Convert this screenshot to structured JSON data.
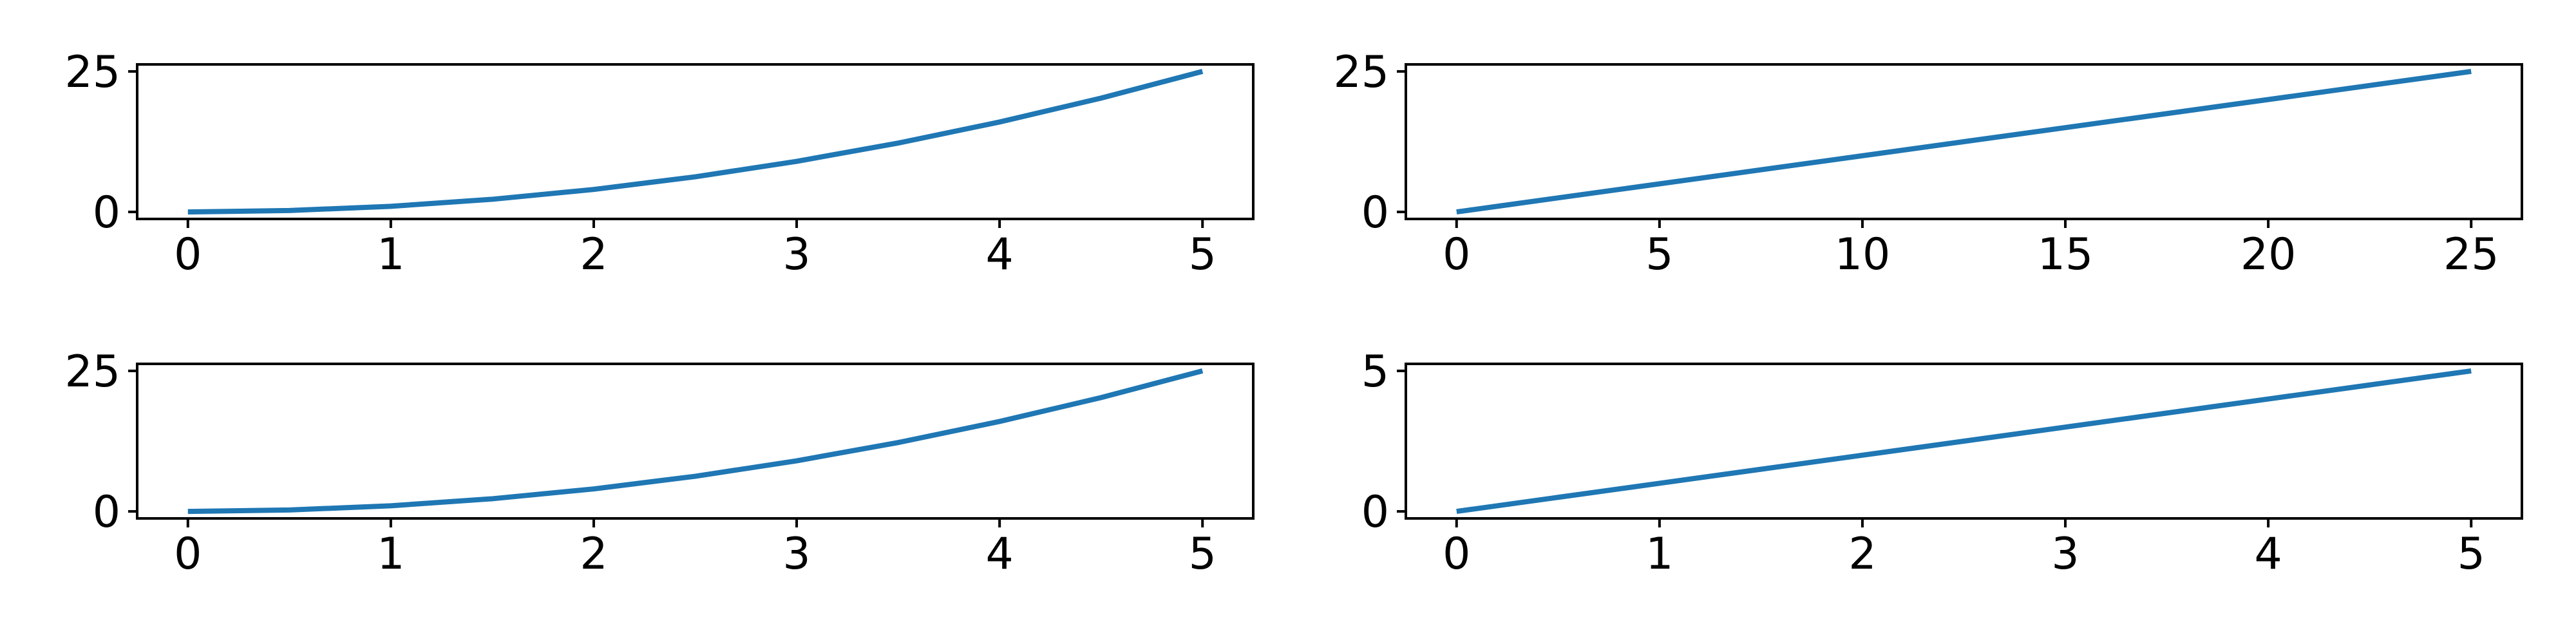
{
  "colors": {
    "series": "#1f77b4",
    "axes": "#000000",
    "background": "#ffffff"
  },
  "chart_data": [
    {
      "type": "line",
      "title": "",
      "xlabel": "",
      "ylabel": "",
      "grid": false,
      "xlim": [
        -0.25,
        5.25
      ],
      "ylim": [
        -1.25,
        26.25
      ],
      "xticks": [
        0,
        1,
        2,
        3,
        4,
        5
      ],
      "yticks": [
        0,
        25
      ],
      "x": [
        0,
        0.5,
        1,
        1.5,
        2,
        2.5,
        3,
        3.5,
        4,
        4.5,
        5
      ],
      "series": [
        {
          "values": [
            0,
            0.25,
            1,
            2.25,
            4,
            6.25,
            9,
            12.25,
            16,
            20.25,
            25
          ]
        }
      ]
    },
    {
      "type": "line",
      "title": "",
      "xlabel": "",
      "ylabel": "",
      "grid": false,
      "xlim": [
        -1.25,
        26.25
      ],
      "ylim": [
        -1.25,
        26.25
      ],
      "xticks": [
        0,
        5,
        10,
        15,
        20,
        25
      ],
      "yticks": [
        0,
        25
      ],
      "x": [
        0,
        0.25,
        1,
        2.25,
        4,
        6.25,
        9,
        12.25,
        16,
        20.25,
        25
      ],
      "series": [
        {
          "values": [
            0,
            0.25,
            1,
            2.25,
            4,
            6.25,
            9,
            12.25,
            16,
            20.25,
            25
          ]
        }
      ]
    },
    {
      "type": "line",
      "title": "",
      "xlabel": "",
      "ylabel": "",
      "grid": false,
      "xlim": [
        -0.25,
        5.25
      ],
      "ylim": [
        -1.25,
        26.25
      ],
      "xticks": [
        0,
        1,
        2,
        3,
        4,
        5
      ],
      "yticks": [
        0,
        25
      ],
      "x": [
        0,
        0.5,
        1,
        1.5,
        2,
        2.5,
        3,
        3.5,
        4,
        4.5,
        5
      ],
      "series": [
        {
          "values": [
            0,
            0.25,
            1,
            2.25,
            4,
            6.25,
            9,
            12.25,
            16,
            20.25,
            25
          ]
        }
      ]
    },
    {
      "type": "line",
      "title": "",
      "xlabel": "",
      "ylabel": "",
      "grid": false,
      "xlim": [
        -0.25,
        5.25
      ],
      "ylim": [
        -0.25,
        5.25
      ],
      "xticks": [
        0,
        1,
        2,
        3,
        4,
        5
      ],
      "yticks": [
        0,
        5
      ],
      "x": [
        0,
        0.5,
        1,
        1.5,
        2,
        2.5,
        3,
        3.5,
        4,
        4.5,
        5
      ],
      "series": [
        {
          "values": [
            0,
            0.5,
            1,
            1.5,
            2,
            2.5,
            3,
            3.5,
            4,
            4.5,
            5
          ]
        }
      ]
    }
  ]
}
